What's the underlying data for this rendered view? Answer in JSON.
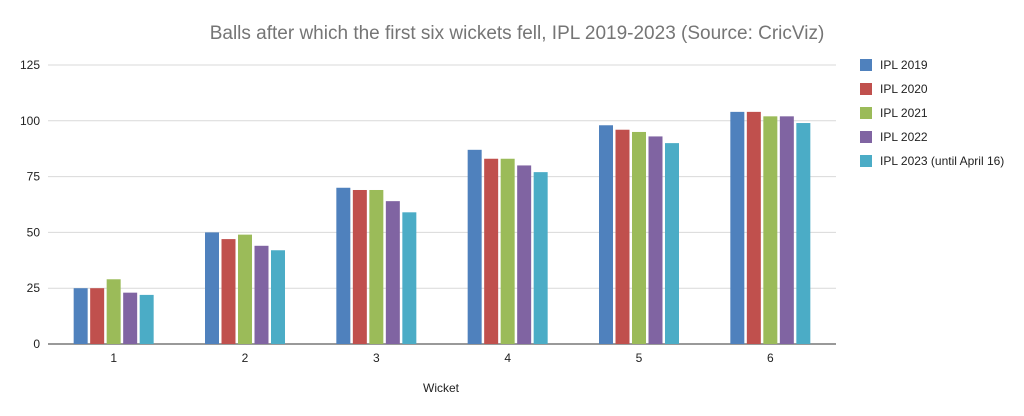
{
  "chart_data": {
    "type": "bar",
    "title": "Balls after which the first six wickets fell, IPL 2019-2023 (Source: CricViz)",
    "xlabel": "Wicket",
    "ylabel": "",
    "categories": [
      "1",
      "2",
      "3",
      "4",
      "5",
      "6"
    ],
    "ylim": [
      0,
      125
    ],
    "yticks": [
      0,
      25,
      50,
      75,
      100,
      125
    ],
    "grid": true,
    "legend_position": "right",
    "series": [
      {
        "name": "IPL 2019",
        "color": "#4f81bd",
        "values": [
          25,
          50,
          70,
          87,
          98,
          104
        ]
      },
      {
        "name": "IPL 2020",
        "color": "#c0504d",
        "values": [
          25,
          47,
          69,
          83,
          96,
          104
        ]
      },
      {
        "name": "IPL 2021",
        "color": "#9bbb59",
        "values": [
          29,
          49,
          69,
          83,
          95,
          102
        ]
      },
      {
        "name": "IPL 2022",
        "color": "#8064a2",
        "values": [
          23,
          44,
          64,
          80,
          93,
          102
        ]
      },
      {
        "name": "IPL 2023 (until April 16)",
        "color": "#4bacc6",
        "values": [
          22,
          42,
          59,
          77,
          90,
          99
        ]
      }
    ]
  }
}
